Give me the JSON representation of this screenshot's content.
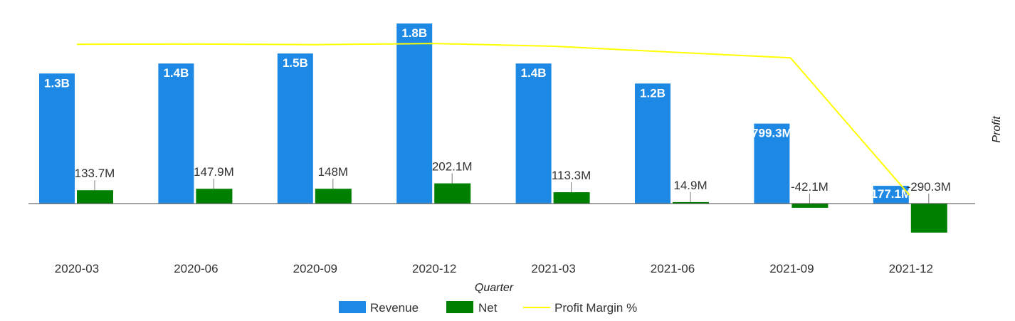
{
  "chart_data": {
    "type": "bar",
    "title": "",
    "xlabel": "Quarter",
    "ylabel": "Profit",
    "categories": [
      "2020-03",
      "2020-06",
      "2020-09",
      "2020-12",
      "2021-03",
      "2021-06",
      "2021-09",
      "2021-12"
    ],
    "series": [
      {
        "name": "Revenue",
        "type": "bar",
        "color": "#1e88e5",
        "values": [
          1300000000,
          1400000000,
          1500000000,
          1800000000,
          1400000000,
          1200000000,
          799300000,
          177100000
        ],
        "labels": [
          "1.3B",
          "1.4B",
          "1.5B",
          "1.8B",
          "1.4B",
          "1.2B",
          "799.3M",
          "177.1M"
        ]
      },
      {
        "name": "Net",
        "type": "bar",
        "color": "#008000",
        "values": [
          133700000,
          147900000,
          148000000,
          202100000,
          113300000,
          14900000,
          -42100000,
          -290300000
        ],
        "labels": [
          "133.7M",
          "147.9M",
          "148M",
          "202.1M",
          "113.3M",
          "14.9M",
          "-42.1M",
          "-290.3M"
        ]
      },
      {
        "name": "Profit Margin %",
        "type": "line",
        "color": "#ffff00",
        "values": [
          10.3,
          10.6,
          9.9,
          11.2,
          8.1,
          1.2,
          -5.3,
          -163.9
        ]
      }
    ],
    "ylim": [
      -500000000,
      1850000000
    ],
    "margin_ylim": [
      -200,
      10.5
    ],
    "legend_position": "bottom",
    "grid": false
  }
}
